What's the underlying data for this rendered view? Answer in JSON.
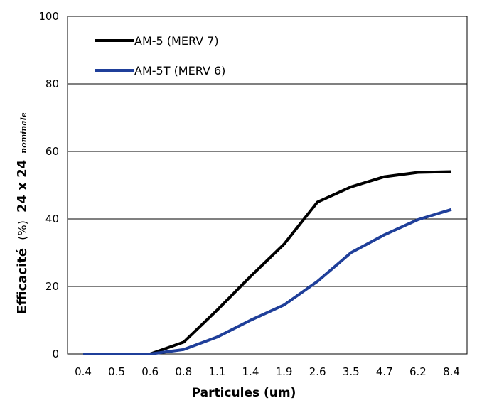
{
  "chart_data": {
    "type": "line",
    "title": "",
    "xlabel": "Particules (um)",
    "ylabel": {
      "main": "Efficacité",
      "pct": "(%)",
      "size": "24 x 24",
      "sub": "nominale"
    },
    "categories": [
      "0.4",
      "0.5",
      "0.6",
      "0.8",
      "1.1",
      "1.4",
      "1.9",
      "2.6",
      "3.5",
      "4.7",
      "6.2",
      "8.4"
    ],
    "ylim": [
      0,
      100
    ],
    "yticks": [
      "0",
      "20",
      "40",
      "60",
      "80",
      "100"
    ],
    "grid": true,
    "legend_position": "top-left",
    "series": [
      {
        "name": "AM-5 (MERV 7)",
        "color": "#000000",
        "values": [
          0,
          0,
          0,
          3.5,
          13,
          23,
          32.5,
          45,
          49.5,
          52.5,
          53.8,
          54
        ]
      },
      {
        "name": "AM-5T (MERV 6)",
        "color": "#1f3f9a",
        "values": [
          0,
          0,
          0,
          1.3,
          5,
          10,
          14.5,
          21.5,
          30,
          35.3,
          39.8,
          42.8
        ]
      }
    ]
  }
}
